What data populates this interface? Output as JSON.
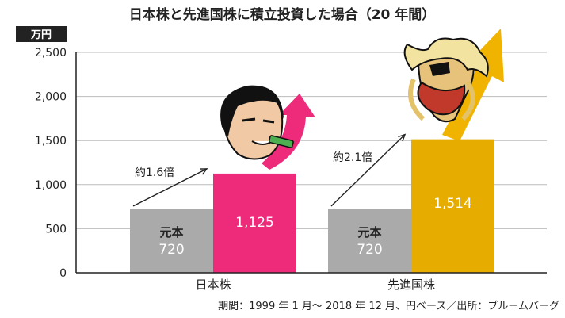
{
  "chart_data": {
    "type": "bar",
    "title": "日本株と先進国株に積立投資した場合（20 年間）",
    "unit_label": "万円",
    "categories": [
      "日本株",
      "先進国株"
    ],
    "ylim": [
      0,
      2500
    ],
    "yticks": [
      0,
      500,
      1000,
      1500,
      2000,
      2500
    ],
    "ytick_labels": [
      "0",
      "500",
      "1,000",
      "1,500",
      "2,000",
      "2,500"
    ],
    "grid": true,
    "series": [
      {
        "name": "元本",
        "values": [
          720,
          720
        ],
        "labels": [
          "720",
          "720"
        ],
        "color": "#aaaaaa"
      },
      {
        "name": "",
        "values": [
          1125,
          1514
        ],
        "labels": [
          "1,125",
          "1,514"
        ],
        "colors": [
          "#ee2a7b",
          "#e6ac00"
        ]
      }
    ],
    "principal_caption": "元本",
    "annotations": [
      {
        "category": "日本株",
        "text": "約1.6倍"
      },
      {
        "category": "先進国株",
        "text": "約2.1倍"
      }
    ],
    "footnote": "期間：1999 年 1 月～ 2018 年 12 月、円ベース／出所：ブルームバーグ",
    "colors": {
      "title_bar": "#222222",
      "axis": "#222222",
      "grid": "#bbbbbb",
      "pink_arrow": "#ee2a7b",
      "gold_arrow": "#f0b400"
    },
    "decorations": [
      "cartoon-man-face-icon",
      "cartoon-viking-face-icon"
    ]
  }
}
